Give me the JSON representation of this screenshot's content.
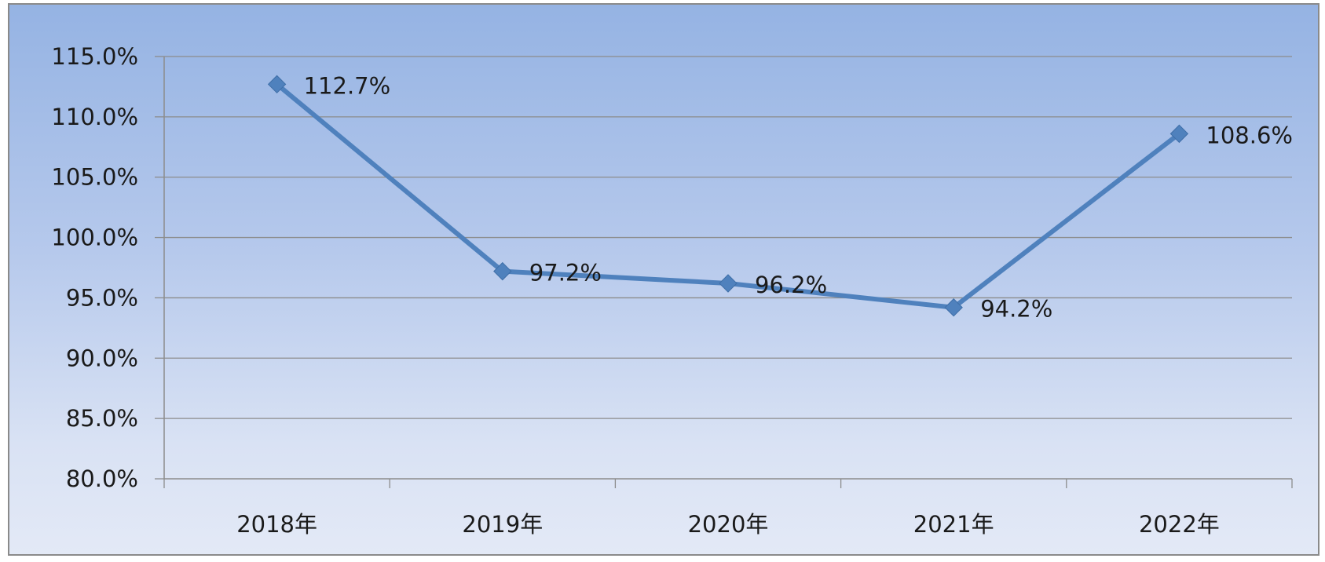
{
  "chart_data": {
    "type": "line",
    "categories": [
      "2018年",
      "2019年",
      "2020年",
      "2021年",
      "2022年"
    ],
    "series": [
      {
        "values": [
          112.7,
          97.2,
          96.2,
          94.2,
          108.6
        ],
        "data_labels": [
          "112.7%",
          "97.2%",
          "96.2%",
          "94.2%",
          "108.6%"
        ]
      }
    ],
    "y_ticks": [
      "80.0%",
      "85.0%",
      "90.0%",
      "95.0%",
      "100.0%",
      "105.0%",
      "110.0%",
      "115.0%"
    ],
    "ylim": [
      80,
      115
    ],
    "y_unit": "%",
    "grid": true,
    "legend": "none",
    "title": "",
    "xlabel": "",
    "ylabel": "",
    "colors": {
      "line": "#4f81bd",
      "marker": "#4f81bd",
      "grid": "#8c8c8c",
      "axis": "#8c8c8c",
      "background_top": "#95b3e3",
      "background_bottom": "#e3e9f6"
    }
  }
}
